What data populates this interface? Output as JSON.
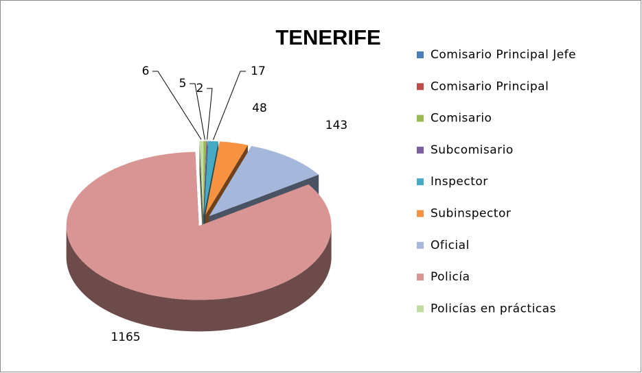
{
  "chart_data": {
    "type": "pie",
    "title": "TENERIFE",
    "categories": [
      "Comisario Principal Jefe",
      "Comisario Principal",
      "Comisario",
      "Subcomisario",
      "Inspector",
      "Subinspector",
      "Oficial",
      "Policía",
      "Policías en prácticas"
    ],
    "values": [
      0,
      0,
      5,
      2,
      17,
      48,
      143,
      1165,
      6
    ],
    "colors": [
      "#4a7ebb",
      "#be4b48",
      "#98b954",
      "#7d60a0",
      "#46aac4",
      "#f69240",
      "#a5b8dc",
      "#d89594",
      "#c0dca0"
    ],
    "legend": "right"
  }
}
